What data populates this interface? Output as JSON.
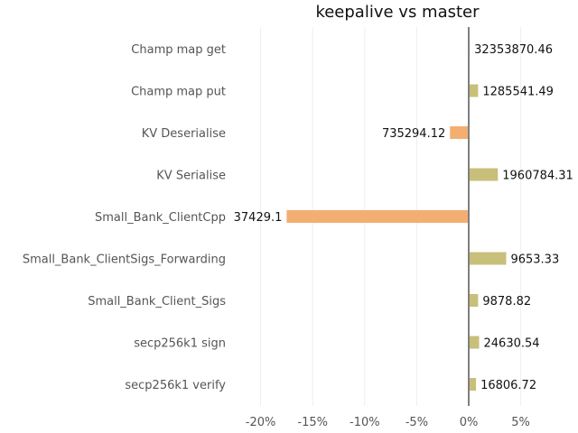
{
  "chart_data": {
    "type": "bar",
    "orientation": "horizontal",
    "title": "keepalive vs master",
    "xlabel": "",
    "ylabel": "",
    "xlim": [
      -0.205,
      0.105
    ],
    "x_ticks": [
      -0.2,
      -0.15,
      -0.1,
      -0.05,
      0,
      0.05
    ],
    "x_tick_labels": [
      "-20%",
      "-15%",
      "-10%",
      "-5%",
      "0%",
      "5%"
    ],
    "grid": "vertical, light",
    "legend": "none",
    "categories": [
      "Champ map get",
      "Champ map put",
      "KV Deserialise",
      "KV Serialise",
      "Small_Bank_ClientCpp",
      "Small_Bank_ClientSigs_Forwarding",
      "Small_Bank_Client_Sigs",
      "secp256k1 sign",
      "secp256k1 verify"
    ],
    "values": [
      0.001,
      0.009,
      -0.018,
      0.028,
      -0.175,
      0.036,
      0.009,
      0.01,
      0.007
    ],
    "data_labels": [
      "32353870.46",
      "1285541.49",
      "735294.12",
      "1960784.31",
      "37429.1",
      "9653.33",
      "9878.82",
      "24630.54",
      "16806.72"
    ],
    "colors": {
      "positive": "#c8bf7a",
      "negative": "#f4ae72",
      "zero_line": "#808080",
      "grid": "#eeeeee"
    }
  }
}
